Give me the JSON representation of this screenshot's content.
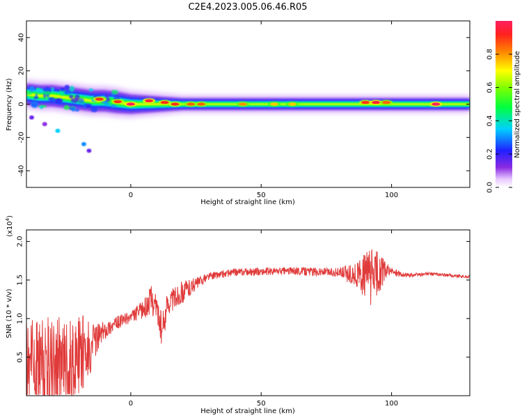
{
  "title": "C2E4.2023.005.06.46.R05",
  "chart_data": [
    {
      "type": "heatmap",
      "xlabel": "Height of straight line (km)",
      "ylabel": "Frequency (Hz)",
      "xlim": [
        -40,
        130
      ],
      "ylim": [
        -50,
        50
      ],
      "xticks": [
        0,
        50,
        100
      ],
      "yticks": [
        -40,
        -20,
        0,
        20,
        40
      ],
      "colorbar": {
        "label": "Normalized spectral amplitude",
        "range": [
          0.0,
          1.0
        ],
        "ticks": [
          "0.0",
          "0.2",
          "0.4",
          "0.6",
          "0.8"
        ],
        "colormap": "rainbow (white-violet-blue-cyan-green-yellow-red)"
      },
      "ridge_frequency_hz": [
        {
          "x": -40,
          "f": 6
        },
        {
          "x": -35,
          "f": 5
        },
        {
          "x": -30,
          "f": 5
        },
        {
          "x": -25,
          "f": 4
        },
        {
          "x": -20,
          "f": 3
        },
        {
          "x": -15,
          "f": 2
        },
        {
          "x": -10,
          "f": 2
        },
        {
          "x": -5,
          "f": 1
        },
        {
          "x": 0,
          "f": 0
        },
        {
          "x": 10,
          "f": 0
        },
        {
          "x": 20,
          "f": 0
        },
        {
          "x": 130,
          "f": 0
        }
      ],
      "hotspots": [
        {
          "x": -12,
          "f": 3,
          "amp": 0.9
        },
        {
          "x": -5,
          "f": 1.5,
          "amp": 0.9
        },
        {
          "x": 0,
          "f": 0,
          "amp": 1.0
        },
        {
          "x": 7,
          "f": 2,
          "amp": 0.95
        },
        {
          "x": 13,
          "f": 1,
          "amp": 0.9
        },
        {
          "x": 17,
          "f": 0,
          "amp": 0.9
        },
        {
          "x": 23,
          "f": 0,
          "amp": 0.85
        },
        {
          "x": 27,
          "f": 0,
          "amp": 0.85
        },
        {
          "x": 43,
          "f": 0,
          "amp": 0.8
        },
        {
          "x": 55,
          "f": 0,
          "amp": 0.75
        },
        {
          "x": 62,
          "f": 0,
          "amp": 0.75
        },
        {
          "x": 90,
          "f": 1,
          "amp": 0.9
        },
        {
          "x": 94,
          "f": 1,
          "amp": 0.95
        },
        {
          "x": 98,
          "f": 1,
          "amp": 0.85
        },
        {
          "x": 117,
          "f": 0,
          "amp": 1.0
        }
      ],
      "side_features": [
        {
          "x": -28,
          "f": -16,
          "amp": 0.35
        },
        {
          "x": -18,
          "f": -24,
          "amp": 0.3
        },
        {
          "x": -16,
          "f": -28,
          "amp": 0.15
        },
        {
          "x": -38,
          "f": -8,
          "amp": 0.15
        },
        {
          "x": -33,
          "f": -12,
          "amp": 0.12
        }
      ]
    },
    {
      "type": "line",
      "xlabel": "Height of straight line (km)",
      "ylabel": "SNR (10 * v/v)",
      "exponent_label": "(x10",
      "exponent_power": "4",
      "exponent_close": ")",
      "xlim": [
        -40,
        130
      ],
      "ylim": [
        0,
        2.15
      ],
      "xticks": [
        0,
        50,
        100
      ],
      "yticks": [
        "0.5",
        "1.0",
        "1.5",
        "2.0"
      ],
      "series": [
        {
          "color": "#e03a3a",
          "envelope": [
            {
              "x": -40,
              "base": 0.35,
              "amp": 0.45
            },
            {
              "x": -30,
              "base": 0.4,
              "amp": 0.45
            },
            {
              "x": -20,
              "base": 0.5,
              "amp": 0.4
            },
            {
              "x": -10,
              "base": 0.85,
              "amp": 0.12
            },
            {
              "x": -5,
              "base": 0.95,
              "amp": 0.08
            },
            {
              "x": 0,
              "base": 1.02,
              "amp": 0.08
            },
            {
              "x": 5,
              "base": 1.12,
              "amp": 0.12
            },
            {
              "x": 8,
              "base": 1.25,
              "amp": 0.2
            },
            {
              "x": 10,
              "base": 1.15,
              "amp": 0.15
            },
            {
              "x": 12,
              "base": 0.8,
              "amp": 0.25
            },
            {
              "x": 14,
              "base": 1.2,
              "amp": 0.15
            },
            {
              "x": 20,
              "base": 1.35,
              "amp": 0.15
            },
            {
              "x": 25,
              "base": 1.45,
              "amp": 0.08
            },
            {
              "x": 30,
              "base": 1.55,
              "amp": 0.05
            },
            {
              "x": 40,
              "base": 1.6,
              "amp": 0.05
            },
            {
              "x": 60,
              "base": 1.62,
              "amp": 0.05
            },
            {
              "x": 80,
              "base": 1.6,
              "amp": 0.06
            },
            {
              "x": 87,
              "base": 1.55,
              "amp": 0.18
            },
            {
              "x": 92,
              "base": 1.55,
              "amp": 0.38
            },
            {
              "x": 96,
              "base": 1.6,
              "amp": 0.25
            },
            {
              "x": 99,
              "base": 1.62,
              "amp": 0.06
            },
            {
              "x": 105,
              "base": 1.56,
              "amp": 0.03
            },
            {
              "x": 115,
              "base": 1.58,
              "amp": 0.02
            },
            {
              "x": 130,
              "base": 1.54,
              "amp": 0.02
            }
          ]
        }
      ]
    }
  ]
}
